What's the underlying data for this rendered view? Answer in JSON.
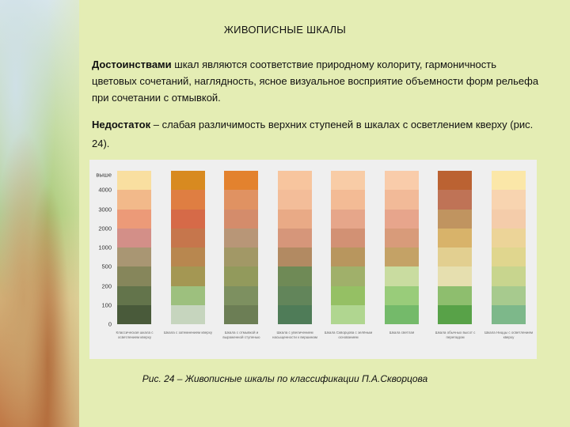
{
  "title": "ЖИВОПИСНЫЕ ШКАЛЫ",
  "p1_bold": "Достоинствами",
  "p1_text": " шкал являются соответствие природному колориту, гармоничность цветовых сочетаний, наглядность, ясное визуальное восприятие объемности форм рельефа при сочетании с отмывкой.",
  "p2_bold": "Недостаток",
  "p2_text": " – слабая различимость верхних ступеней в шкалах с осветлением кверху (рис. 24).",
  "axis_labels": [
    "выше",
    "4000",
    "3000",
    "2000",
    "1000",
    "500",
    "200",
    "100",
    "0"
  ],
  "scales": [
    {
      "colors": [
        "#f9dfa0",
        "#f2b98a",
        "#ec9a78",
        "#d38f88",
        "#a99673",
        "#86865b",
        "#63744b",
        "#495a3a"
      ],
      "caption": "Классическая шкала с осветлением кверху"
    },
    {
      "colors": [
        "#d88a20",
        "#df7e42",
        "#d66a48",
        "#c6764c",
        "#b8874f",
        "#a49753",
        "#9dc07e",
        "#c6d5be"
      ],
      "caption": "Шкала с затемнением кверху"
    },
    {
      "colors": [
        "#e3822e",
        "#e09262",
        "#d48c6b",
        "#b89677",
        "#a29866",
        "#929a5c",
        "#7d9060",
        "#6c7e55"
      ],
      "caption": "Шкала с отмывкой и выраженной ступенью"
    },
    {
      "colors": [
        "#f7c59e",
        "#f3bd99",
        "#e9aa86",
        "#d6967a",
        "#b28a62",
        "#6f8a56",
        "#62855a",
        "#4f7c58"
      ],
      "caption": "Шкала с увеличением насыщенности к вершинам"
    },
    {
      "colors": [
        "#f8cca6",
        "#f3bb95",
        "#e6a68a",
        "#d29174",
        "#b8965e",
        "#a0b06a",
        "#95c064",
        "#b0d690"
      ],
      "caption": "Шкала Скворцова с зелёным основанием"
    },
    {
      "colors": [
        "#f9ccaa",
        "#f2ba98",
        "#e7a58c",
        "#d89b7a",
        "#c4a266",
        "#c9dca0",
        "#99cc7a",
        "#74ba6a"
      ],
      "caption": "Шкала светлая"
    },
    {
      "colors": [
        "#bb6232",
        "#bf7356",
        "#c09460",
        "#d8b36a",
        "#e2cf90",
        "#e6dfaf",
        "#8ebe6e",
        "#58a248"
      ],
      "caption": "Шкала обычных высот с перепадом"
    },
    {
      "colors": [
        "#fbe7a8",
        "#f8d4b0",
        "#f4ccaa",
        "#ecd498",
        "#e0d68e",
        "#c8d58e",
        "#a7ca8e",
        "#7db88a"
      ],
      "caption": "Шкала Ниццы с осветлением кверху"
    }
  ],
  "figure_caption": "Рис. 24 – Живописные шкалы по классификации П.А.Скворцова"
}
